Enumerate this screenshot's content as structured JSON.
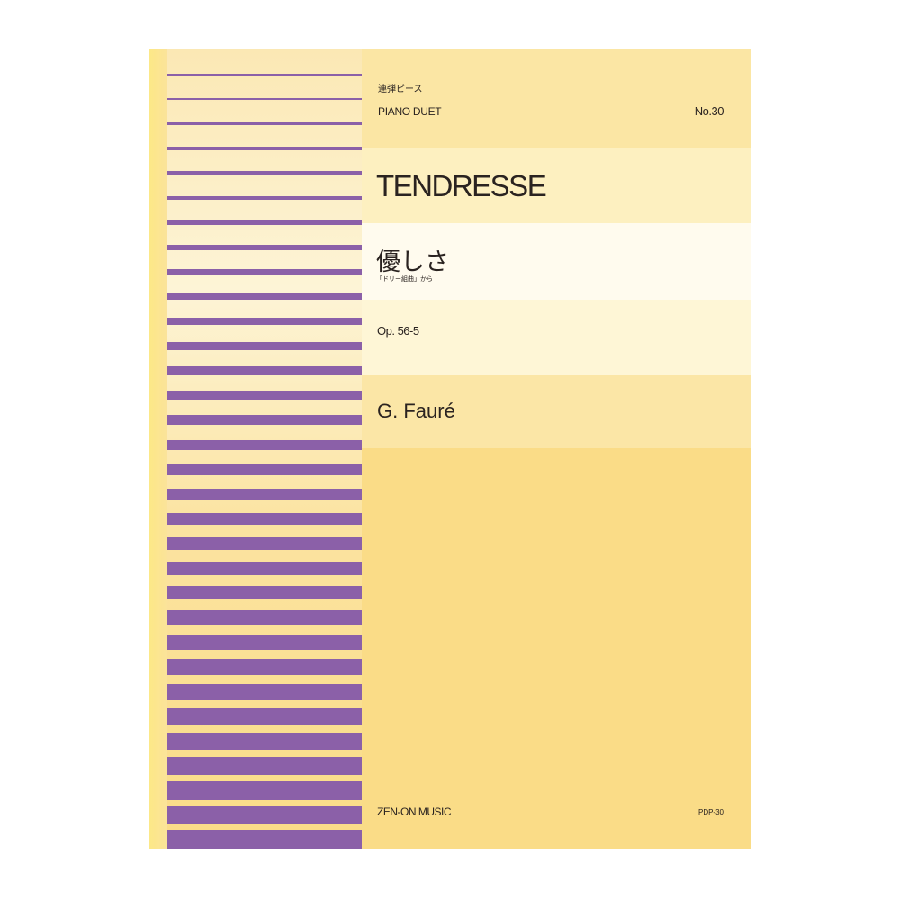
{
  "cover": {
    "series_jp": "連弾ピース",
    "series_en": "PIANO DUET",
    "number": "No.30",
    "title": "TENDRESSE",
    "title_jp": "優しさ",
    "source_jp": "「ドリー組曲」から",
    "opus": "Op. 56-5",
    "composer": "G. Fauré",
    "publisher": "ZEN-ON MUSIC",
    "catalog": "PDP-30"
  },
  "colors": {
    "stripe": "#8b60a8",
    "background": "#fadc87"
  }
}
